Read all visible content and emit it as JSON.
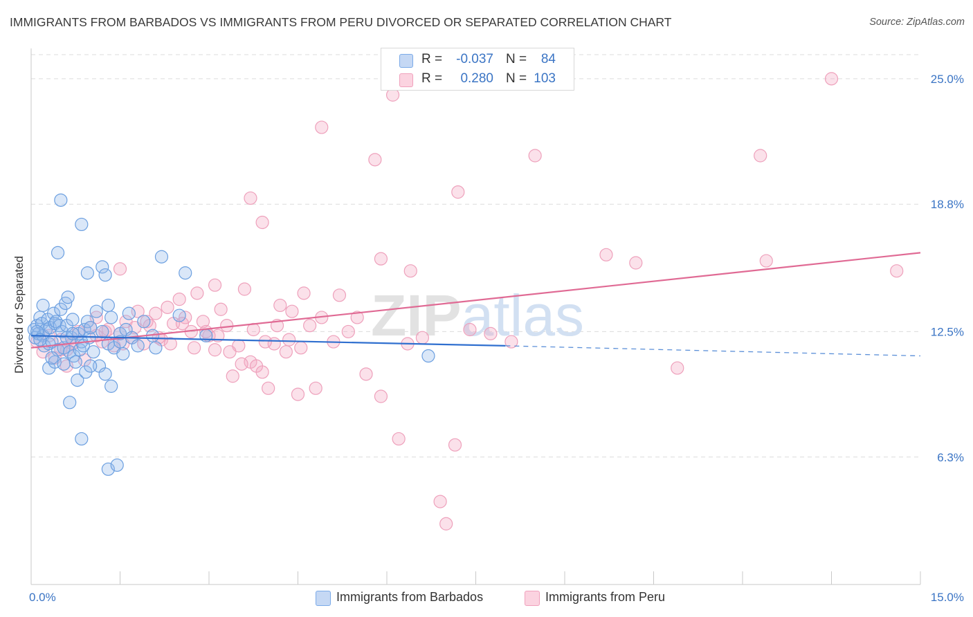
{
  "header": {
    "title": "IMMIGRANTS FROM BARBADOS VS IMMIGRANTS FROM PERU DIVORCED OR SEPARATED CORRELATION CHART",
    "source": "Source: ZipAtlas.com"
  },
  "legend": {
    "series1": {
      "r_label": "R =",
      "r_value": "-0.037",
      "n_label": "N =",
      "n_value": "84",
      "color": "#7aaae8"
    },
    "series2": {
      "r_label": "R =",
      "r_value": "0.280",
      "n_label": "N =",
      "n_value": "103",
      "color": "#f0a0bc"
    }
  },
  "bottom_legend": {
    "series1": "Immigrants from Barbados",
    "series2": "Immigrants from Peru"
  },
  "chart_data": {
    "type": "scatter",
    "title": "IMMIGRANTS FROM BARBADOS VS IMMIGRANTS FROM PERU DIVORCED OR SEPARATED CORRELATION CHART",
    "ylabel": "Divorced or Separated",
    "xlabel": "",
    "xlim": [
      0,
      15
    ],
    "ylim": [
      0,
      26.5
    ],
    "x_tick_labels": [
      "0.0%",
      "15.0%"
    ],
    "y_tick_labels": [
      "6.3%",
      "12.5%",
      "18.8%",
      "25.0%"
    ],
    "y_ticks": [
      6.3,
      12.5,
      18.8,
      25.0
    ],
    "grid": true,
    "watermark": "ZIPatlas",
    "series": [
      {
        "name": "Immigrants from Barbados",
        "color": "#6b9fe0",
        "trend": {
          "x": [
            0.0,
            8.0
          ],
          "y": [
            12.3,
            11.8
          ],
          "dashed_to": [
            15.0,
            11.3
          ]
        },
        "points": [
          [
            0.05,
            12.6
          ],
          [
            0.07,
            12.2
          ],
          [
            0.1,
            12.8
          ],
          [
            0.12,
            12.4
          ],
          [
            0.15,
            13.2
          ],
          [
            0.18,
            12.9
          ],
          [
            0.2,
            12.3
          ],
          [
            0.22,
            11.8
          ],
          [
            0.25,
            12.6
          ],
          [
            0.28,
            13.1
          ],
          [
            0.3,
            11.9
          ],
          [
            0.32,
            12.7
          ],
          [
            0.35,
            12.0
          ],
          [
            0.38,
            13.4
          ],
          [
            0.4,
            12.9
          ],
          [
            0.42,
            13.0
          ],
          [
            0.45,
            11.6
          ],
          [
            0.48,
            12.8
          ],
          [
            0.5,
            13.6
          ],
          [
            0.52,
            12.5
          ],
          [
            0.55,
            11.7
          ],
          [
            0.58,
            13.9
          ],
          [
            0.6,
            12.8
          ],
          [
            0.62,
            14.2
          ],
          [
            0.65,
            11.5
          ],
          [
            0.68,
            12.2
          ],
          [
            0.7,
            13.1
          ],
          [
            0.72,
            11.3
          ],
          [
            0.75,
            11.0
          ],
          [
            0.78,
            10.1
          ],
          [
            0.8,
            12.4
          ],
          [
            0.82,
            11.6
          ],
          [
            0.85,
            12.0
          ],
          [
            0.88,
            11.8
          ],
          [
            0.9,
            12.6
          ],
          [
            0.92,
            10.5
          ],
          [
            0.95,
            13.0
          ],
          [
            0.98,
            12.2
          ],
          [
            1.0,
            12.7
          ],
          [
            1.05,
            11.5
          ],
          [
            1.1,
            13.5
          ],
          [
            1.15,
            10.8
          ],
          [
            1.2,
            12.5
          ],
          [
            1.25,
            10.4
          ],
          [
            1.3,
            11.9
          ],
          [
            1.35,
            13.2
          ],
          [
            1.4,
            11.7
          ],
          [
            1.5,
            12.4
          ],
          [
            1.55,
            11.4
          ],
          [
            1.6,
            12.6
          ],
          [
            1.65,
            13.4
          ],
          [
            1.7,
            12.2
          ],
          [
            1.8,
            11.8
          ],
          [
            1.9,
            13.0
          ],
          [
            2.05,
            12.3
          ],
          [
            2.2,
            16.2
          ],
          [
            2.5,
            13.3
          ],
          [
            2.6,
            15.4
          ],
          [
            2.95,
            12.3
          ],
          [
            0.45,
            16.4
          ],
          [
            0.5,
            19.0
          ],
          [
            0.85,
            17.8
          ],
          [
            0.95,
            15.4
          ],
          [
            1.2,
            15.7
          ],
          [
            1.25,
            15.3
          ],
          [
            1.3,
            13.8
          ],
          [
            1.35,
            9.8
          ],
          [
            0.65,
            9.0
          ],
          [
            0.85,
            7.2
          ],
          [
            1.3,
            5.7
          ],
          [
            1.45,
            5.9
          ],
          [
            0.1,
            12.5
          ],
          [
            0.2,
            13.8
          ],
          [
            0.3,
            10.7
          ],
          [
            0.4,
            11.0
          ],
          [
            0.6,
            12.2
          ],
          [
            0.7,
            12.4
          ],
          [
            1.0,
            10.8
          ],
          [
            1.5,
            12.0
          ],
          [
            0.15,
            12.1
          ],
          [
            0.35,
            11.2
          ],
          [
            0.55,
            10.9
          ],
          [
            6.7,
            11.3
          ],
          [
            2.1,
            11.7
          ]
        ]
      },
      {
        "name": "Immigrants from Peru",
        "color": "#f0a0bc",
        "trend": {
          "x": [
            0.0,
            15.0
          ],
          "y": [
            11.7,
            16.4
          ]
        },
        "points": [
          [
            0.1,
            12.0
          ],
          [
            0.2,
            11.5
          ],
          [
            0.3,
            12.3
          ],
          [
            0.4,
            11.2
          ],
          [
            0.5,
            12.1
          ],
          [
            0.6,
            11.6
          ],
          [
            0.7,
            11.9
          ],
          [
            0.8,
            12.5
          ],
          [
            0.9,
            11.1
          ],
          [
            1.0,
            12.7
          ],
          [
            1.1,
            13.2
          ],
          [
            1.2,
            12.0
          ],
          [
            1.3,
            12.6
          ],
          [
            1.4,
            11.8
          ],
          [
            1.5,
            12.4
          ],
          [
            1.6,
            13.0
          ],
          [
            1.7,
            12.2
          ],
          [
            1.8,
            13.5
          ],
          [
            1.9,
            11.9
          ],
          [
            2.0,
            12.8
          ],
          [
            2.1,
            13.4
          ],
          [
            2.2,
            12.1
          ],
          [
            2.3,
            13.7
          ],
          [
            2.4,
            12.9
          ],
          [
            2.5,
            14.1
          ],
          [
            2.6,
            13.2
          ],
          [
            2.7,
            12.5
          ],
          [
            2.8,
            14.4
          ],
          [
            2.9,
            13.0
          ],
          [
            3.0,
            12.3
          ],
          [
            3.1,
            11.6
          ],
          [
            3.2,
            13.6
          ],
          [
            3.3,
            12.8
          ],
          [
            3.4,
            10.3
          ],
          [
            3.5,
            11.8
          ],
          [
            3.6,
            14.6
          ],
          [
            3.7,
            11.0
          ],
          [
            3.8,
            10.8
          ],
          [
            3.9,
            10.5
          ],
          [
            4.0,
            9.7
          ],
          [
            4.1,
            11.9
          ],
          [
            4.2,
            13.8
          ],
          [
            4.3,
            11.5
          ],
          [
            4.4,
            13.5
          ],
          [
            4.5,
            9.4
          ],
          [
            4.6,
            14.4
          ],
          [
            4.7,
            12.8
          ],
          [
            4.8,
            9.7
          ],
          [
            4.9,
            13.2
          ],
          [
            5.1,
            12.0
          ],
          [
            5.2,
            14.3
          ],
          [
            5.5,
            13.2
          ],
          [
            5.9,
            9.3
          ],
          [
            6.2,
            7.2
          ],
          [
            6.6,
            12.2
          ],
          [
            6.9,
            4.1
          ],
          [
            7.0,
            3.0
          ],
          [
            7.2,
            19.4
          ],
          [
            7.4,
            12.6
          ],
          [
            8.1,
            12.0
          ],
          [
            8.5,
            21.2
          ],
          [
            9.7,
            16.3
          ],
          [
            10.2,
            15.9
          ],
          [
            10.9,
            10.7
          ],
          [
            12.3,
            21.2
          ],
          [
            12.4,
            16.0
          ],
          [
            13.5,
            25.0
          ],
          [
            14.6,
            15.5
          ],
          [
            4.9,
            22.6
          ],
          [
            5.8,
            21.0
          ],
          [
            3.7,
            19.1
          ],
          [
            3.9,
            17.9
          ],
          [
            6.1,
            24.2
          ],
          [
            5.9,
            16.1
          ],
          [
            6.4,
            15.5
          ],
          [
            3.1,
            14.8
          ],
          [
            0.5,
            11.6
          ],
          [
            0.7,
            11.9
          ],
          [
            1.1,
            12.3
          ],
          [
            1.25,
            12.5
          ],
          [
            1.55,
            11.9
          ],
          [
            1.75,
            12.7
          ],
          [
            1.95,
            13.0
          ],
          [
            2.15,
            12.2
          ],
          [
            2.35,
            11.9
          ],
          [
            2.55,
            12.9
          ],
          [
            2.75,
            11.7
          ],
          [
            2.95,
            12.5
          ],
          [
            3.15,
            12.3
          ],
          [
            3.35,
            11.5
          ],
          [
            3.55,
            10.9
          ],
          [
            3.75,
            12.6
          ],
          [
            3.95,
            12.0
          ],
          [
            4.15,
            12.8
          ],
          [
            4.35,
            12.1
          ],
          [
            4.55,
            11.7
          ],
          [
            5.35,
            12.5
          ],
          [
            5.65,
            10.4
          ],
          [
            6.35,
            11.9
          ],
          [
            7.15,
            6.9
          ],
          [
            7.75,
            12.4
          ],
          [
            1.5,
            15.6
          ],
          [
            0.6,
            10.8
          ]
        ]
      }
    ]
  }
}
